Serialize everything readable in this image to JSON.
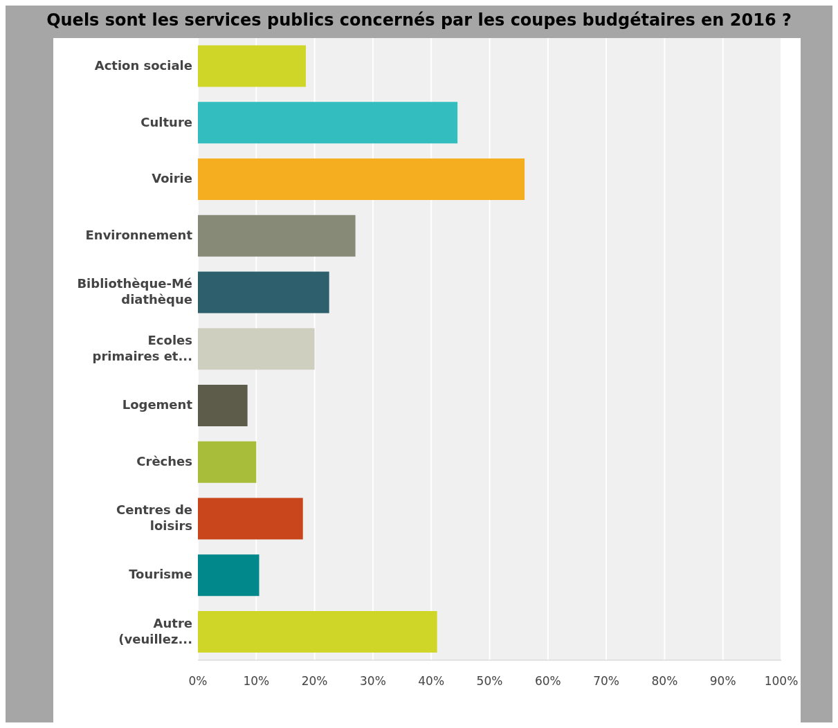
{
  "chart_data": {
    "type": "bar",
    "orientation": "horizontal",
    "title": "Quels sont les services publics concernés par les coupes budgétaires en 2016 ?",
    "categories": [
      "Action sociale",
      "Culture",
      "Voirie",
      "Environnement",
      "Bibliothèque-Médiathèque",
      "Ecoles primaires et...",
      "Logement",
      "Crèches",
      "Centres de loisirs",
      "Tourisme",
      "Autre (veuillez..."
    ],
    "values": [
      18.5,
      44.5,
      56,
      27,
      22.5,
      20,
      8.5,
      10,
      18,
      10.5,
      41
    ],
    "colors": [
      "#cfd628",
      "#33bdbf",
      "#f5ae1f",
      "#888a78",
      "#2e5f6d",
      "#cfcfbf",
      "#5d5c4a",
      "#a8bd39",
      "#c9461d",
      "#00888a",
      "#cfd628"
    ],
    "xlim": [
      0,
      100
    ],
    "xticks": [
      {
        "value": 0,
        "label": "0%"
      },
      {
        "value": 10,
        "label": "10%"
      },
      {
        "value": 20,
        "label": "20%"
      },
      {
        "value": 30,
        "label": "30%"
      },
      {
        "value": 40,
        "label": "40%"
      },
      {
        "value": 50,
        "label": "50%"
      },
      {
        "value": 60,
        "label": "60%"
      },
      {
        "value": 70,
        "label": "70%"
      },
      {
        "value": 80,
        "label": "80%"
      },
      {
        "value": 90,
        "label": "90%"
      },
      {
        "value": 100,
        "label": "100%"
      }
    ],
    "grid": "x"
  }
}
